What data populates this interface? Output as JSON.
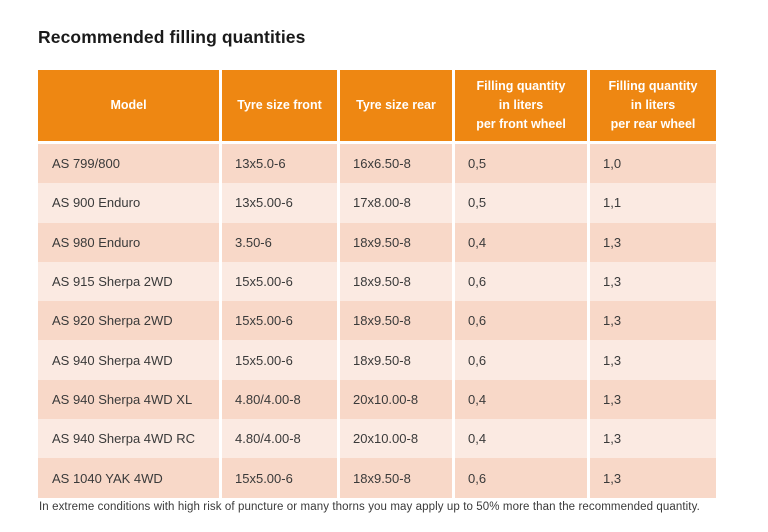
{
  "page": {
    "title": "Recommended filling quantities",
    "footnote": "In extreme conditions with high risk of puncture or many thorns you may apply up to 50% more than the recommended quantity."
  },
  "colors": {
    "header_bg": "#EE8712",
    "header_text": "#FFFFFF",
    "row_odd_bg": "#F8D8C8",
    "row_even_bg": "#FBEAE2",
    "cell_text": "#3A3A3A"
  },
  "table": {
    "columns": [
      {
        "key": "model",
        "label": "Model"
      },
      {
        "key": "tyre_size_front",
        "label": "Tyre size front"
      },
      {
        "key": "tyre_size_rear",
        "label": "Tyre size rear"
      },
      {
        "key": "filling_front",
        "label": "Filling quantity\nin liters\nper front wheel"
      },
      {
        "key": "filling_rear",
        "label": "Filling quantity\nin liters\nper rear wheel"
      }
    ],
    "rows": [
      {
        "model": "AS 799/800",
        "tyre_size_front": "13x5.0-6",
        "tyre_size_rear": "16x6.50-8",
        "filling_front": "0,5",
        "filling_rear": "1,0"
      },
      {
        "model": "AS 900 Enduro",
        "tyre_size_front": "13x5.00-6",
        "tyre_size_rear": "17x8.00-8",
        "filling_front": "0,5",
        "filling_rear": "1,1"
      },
      {
        "model": "AS 980 Enduro",
        "tyre_size_front": "3.50-6",
        "tyre_size_rear": "18x9.50-8",
        "filling_front": "0,4",
        "filling_rear": "1,3"
      },
      {
        "model": "AS 915 Sherpa 2WD",
        "tyre_size_front": "15x5.00-6",
        "tyre_size_rear": "18x9.50-8",
        "filling_front": "0,6",
        "filling_rear": "1,3"
      },
      {
        "model": "AS 920 Sherpa 2WD",
        "tyre_size_front": "15x5.00-6",
        "tyre_size_rear": "18x9.50-8",
        "filling_front": "0,6",
        "filling_rear": "1,3"
      },
      {
        "model": "AS 940 Sherpa 4WD",
        "tyre_size_front": "15x5.00-6",
        "tyre_size_rear": "18x9.50-8",
        "filling_front": "0,6",
        "filling_rear": "1,3"
      },
      {
        "model": "AS 940 Sherpa 4WD XL",
        "tyre_size_front": "4.80/4.00-8",
        "tyre_size_rear": "20x10.00-8",
        "filling_front": "0,4",
        "filling_rear": "1,3"
      },
      {
        "model": "AS 940 Sherpa 4WD RC",
        "tyre_size_front": "4.80/4.00-8",
        "tyre_size_rear": "20x10.00-8",
        "filling_front": "0,4",
        "filling_rear": "1,3"
      },
      {
        "model": "AS 1040 YAK 4WD",
        "tyre_size_front": "15x5.00-6",
        "tyre_size_rear": "18x9.50-8",
        "filling_front": "0,6",
        "filling_rear": "1,3"
      }
    ]
  }
}
